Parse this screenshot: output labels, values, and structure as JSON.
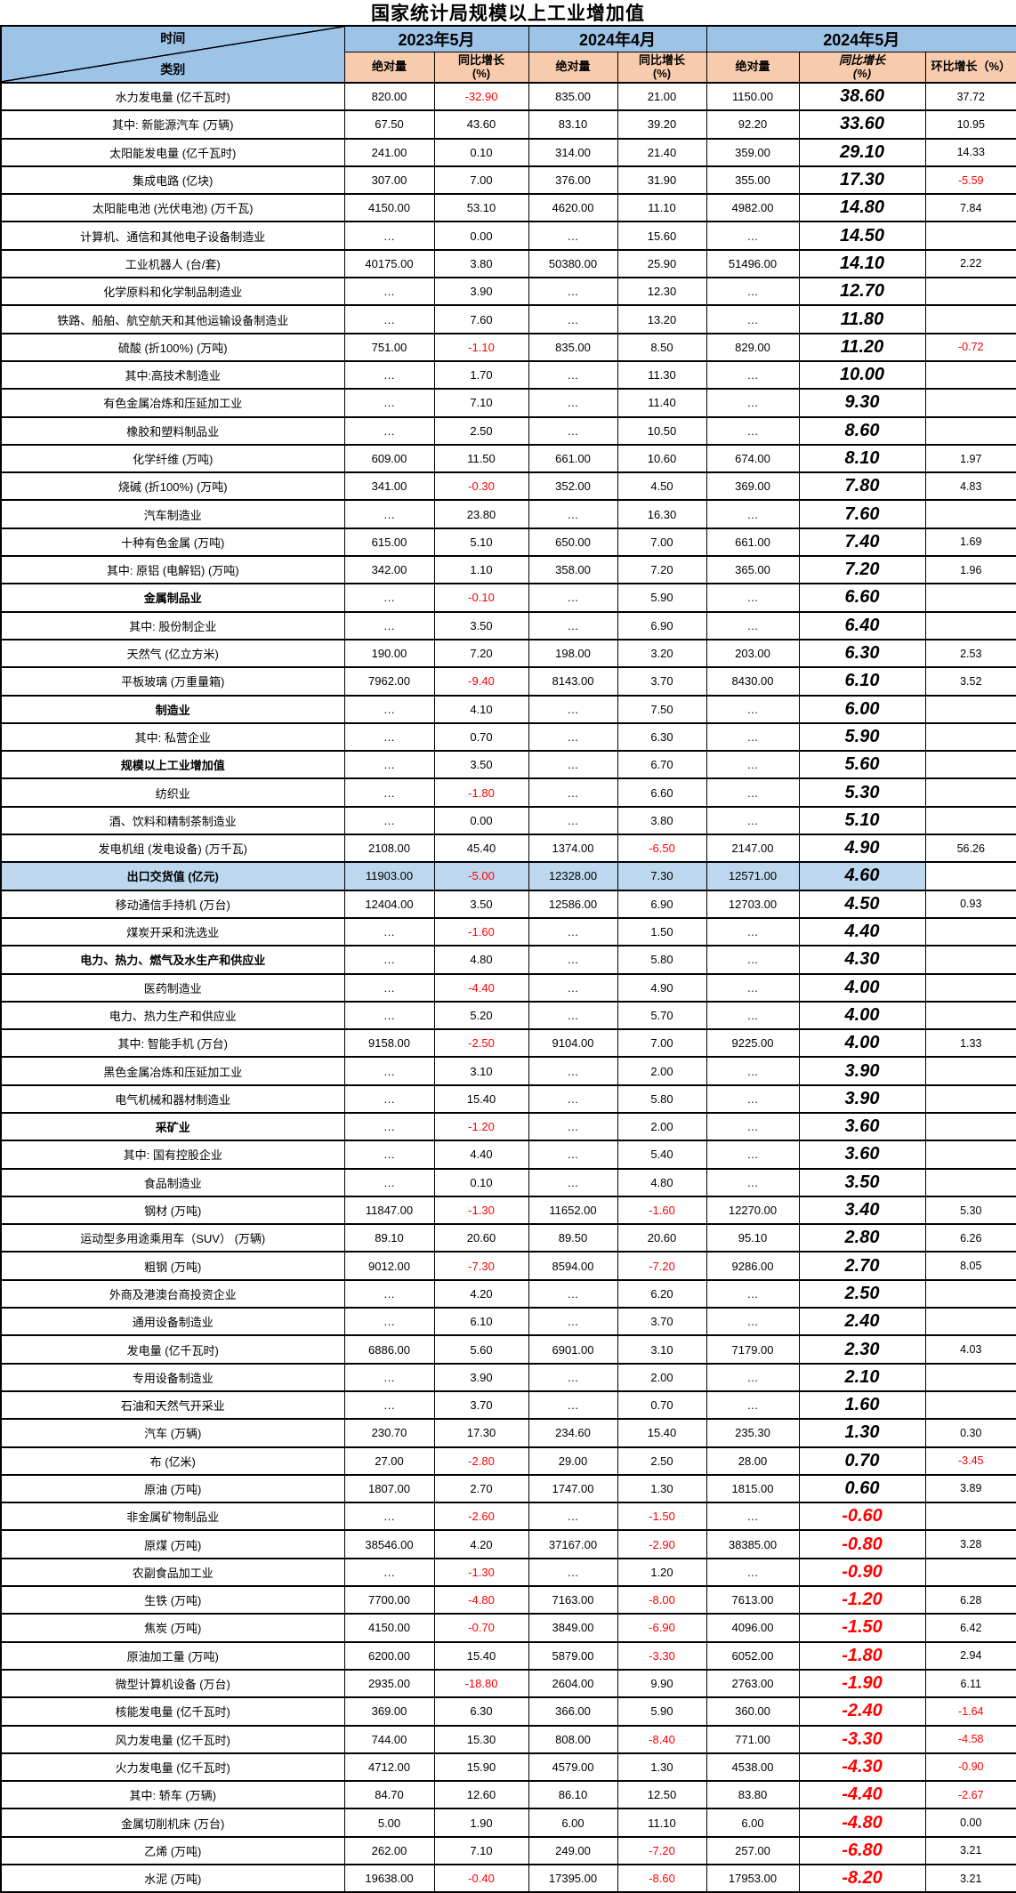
{
  "title": "国家统计局规模以上工业增加值",
  "corner": {
    "top": "时间",
    "bottom": "类别"
  },
  "col_groups": [
    "2023年5月",
    "2024年4月",
    "2024年5月"
  ],
  "subheaders": {
    "abs": "绝对量",
    "yoy_line1": "同比增长",
    "yoy_line2": "(%)",
    "mom": "环比增长（%）"
  },
  "colors": {
    "header_blue": "#9DC3E6",
    "subheader_peach": "#F8CBAD",
    "highlight_blue": "#BDD7EE",
    "negative_red": "#FF0000",
    "border_black": "#000000"
  },
  "rows": [
    {
      "label": "水力发电量 (亿千瓦时)",
      "bold": false,
      "highlight": false,
      "v": [
        "820.00",
        "-32.90",
        "835.00",
        "21.00",
        "1150.00",
        "38.60",
        "37.72"
      ]
    },
    {
      "label": "其中: 新能源汽车 (万辆)",
      "bold": false,
      "highlight": false,
      "v": [
        "67.50",
        "43.60",
        "83.10",
        "39.20",
        "92.20",
        "33.60",
        "10.95"
      ]
    },
    {
      "label": "太阳能发电量 (亿千瓦时)",
      "bold": false,
      "highlight": false,
      "v": [
        "241.00",
        "0.10",
        "314.00",
        "21.40",
        "359.00",
        "29.10",
        "14.33"
      ]
    },
    {
      "label": "集成电路 (亿块)",
      "bold": false,
      "highlight": false,
      "v": [
        "307.00",
        "7.00",
        "376.00",
        "31.90",
        "355.00",
        "17.30",
        "-5.59"
      ]
    },
    {
      "label": "太阳能电池 (光伏电池) (万千瓦)",
      "bold": false,
      "highlight": false,
      "v": [
        "4150.00",
        "53.10",
        "4620.00",
        "11.10",
        "4982.00",
        "14.80",
        "7.84"
      ]
    },
    {
      "label": "计算机、通信和其他电子设备制造业",
      "bold": false,
      "highlight": false,
      "v": [
        "…",
        "0.00",
        "…",
        "15.60",
        "…",
        "14.50",
        ""
      ]
    },
    {
      "label": "工业机器人 (台/套)",
      "bold": false,
      "highlight": false,
      "v": [
        "40175.00",
        "3.80",
        "50380.00",
        "25.90",
        "51496.00",
        "14.10",
        "2.22"
      ]
    },
    {
      "label": "化学原料和化学制品制造业",
      "bold": false,
      "highlight": false,
      "v": [
        "…",
        "3.90",
        "…",
        "12.30",
        "…",
        "12.70",
        ""
      ]
    },
    {
      "label": "铁路、船舶、航空航天和其他运输设备制造业",
      "bold": false,
      "highlight": false,
      "v": [
        "…",
        "7.60",
        "…",
        "13.20",
        "…",
        "11.80",
        ""
      ]
    },
    {
      "label": "硫酸 (折100%) (万吨)",
      "bold": false,
      "highlight": false,
      "v": [
        "751.00",
        "-1.10",
        "835.00",
        "8.50",
        "829.00",
        "11.20",
        "-0.72"
      ]
    },
    {
      "label": "其中:高技术制造业",
      "bold": false,
      "highlight": false,
      "v": [
        "…",
        "1.70",
        "…",
        "11.30",
        "…",
        "10.00",
        ""
      ]
    },
    {
      "label": "有色金属冶炼和压延加工业",
      "bold": false,
      "highlight": false,
      "v": [
        "…",
        "7.10",
        "…",
        "11.40",
        "…",
        "9.30",
        ""
      ]
    },
    {
      "label": "橡胶和塑料制品业",
      "bold": false,
      "highlight": false,
      "v": [
        "…",
        "2.50",
        "…",
        "10.50",
        "…",
        "8.60",
        ""
      ]
    },
    {
      "label": "化学纤维 (万吨)",
      "bold": false,
      "highlight": false,
      "v": [
        "609.00",
        "11.50",
        "661.00",
        "10.60",
        "674.00",
        "8.10",
        "1.97"
      ]
    },
    {
      "label": "烧碱 (折100%) (万吨)",
      "bold": false,
      "highlight": false,
      "v": [
        "341.00",
        "-0.30",
        "352.00",
        "4.50",
        "369.00",
        "7.80",
        "4.83"
      ]
    },
    {
      "label": "汽车制造业",
      "bold": false,
      "highlight": false,
      "v": [
        "…",
        "23.80",
        "…",
        "16.30",
        "…",
        "7.60",
        ""
      ]
    },
    {
      "label": "十种有色金属 (万吨)",
      "bold": false,
      "highlight": false,
      "v": [
        "615.00",
        "5.10",
        "650.00",
        "7.00",
        "661.00",
        "7.40",
        "1.69"
      ]
    },
    {
      "label": "其中: 原铝 (电解铝) (万吨)",
      "bold": false,
      "highlight": false,
      "v": [
        "342.00",
        "1.10",
        "358.00",
        "7.20",
        "365.00",
        "7.20",
        "1.96"
      ]
    },
    {
      "label": "金属制品业",
      "bold": true,
      "highlight": false,
      "v": [
        "…",
        "-0.10",
        "…",
        "5.90",
        "…",
        "6.60",
        ""
      ]
    },
    {
      "label": "其中: 股份制企业",
      "bold": false,
      "highlight": false,
      "v": [
        "…",
        "3.50",
        "…",
        "6.90",
        "…",
        "6.40",
        ""
      ]
    },
    {
      "label": "天然气 (亿立方米)",
      "bold": false,
      "highlight": false,
      "v": [
        "190.00",
        "7.20",
        "198.00",
        "3.20",
        "203.00",
        "6.30",
        "2.53"
      ]
    },
    {
      "label": "平板玻璃 (万重量箱)",
      "bold": false,
      "highlight": false,
      "v": [
        "7962.00",
        "-9.40",
        "8143.00",
        "3.70",
        "8430.00",
        "6.10",
        "3.52"
      ]
    },
    {
      "label": "制造业",
      "bold": true,
      "highlight": false,
      "v": [
        "…",
        "4.10",
        "…",
        "7.50",
        "…",
        "6.00",
        ""
      ]
    },
    {
      "label": "其中: 私营企业",
      "bold": false,
      "highlight": false,
      "v": [
        "…",
        "0.70",
        "…",
        "6.30",
        "…",
        "5.90",
        ""
      ]
    },
    {
      "label": "规模以上工业增加值",
      "bold": true,
      "highlight": false,
      "v": [
        "…",
        "3.50",
        "…",
        "6.70",
        "…",
        "5.60",
        ""
      ]
    },
    {
      "label": "纺织业",
      "bold": false,
      "highlight": false,
      "v": [
        "…",
        "-1.80",
        "…",
        "6.60",
        "…",
        "5.30",
        ""
      ]
    },
    {
      "label": "酒、饮料和精制茶制造业",
      "bold": false,
      "highlight": false,
      "v": [
        "…",
        "0.00",
        "…",
        "3.80",
        "…",
        "5.10",
        ""
      ]
    },
    {
      "label": "发电机组 (发电设备) (万千瓦)",
      "bold": false,
      "highlight": false,
      "v": [
        "2108.00",
        "45.40",
        "1374.00",
        "-6.50",
        "2147.00",
        "4.90",
        "56.26"
      ]
    },
    {
      "label": "出口交货值 (亿元)",
      "bold": true,
      "highlight": true,
      "v": [
        "11903.00",
        "-5.00",
        "12328.00",
        "7.30",
        "12571.00",
        "4.60",
        ""
      ]
    },
    {
      "label": "移动通信手持机 (万台)",
      "bold": false,
      "highlight": false,
      "v": [
        "12404.00",
        "3.50",
        "12586.00",
        "6.90",
        "12703.00",
        "4.50",
        "0.93"
      ]
    },
    {
      "label": "煤炭开采和洗选业",
      "bold": false,
      "highlight": false,
      "v": [
        "…",
        "-1.60",
        "…",
        "1.50",
        "…",
        "4.40",
        ""
      ]
    },
    {
      "label": "电力、热力、燃气及水生产和供应业",
      "bold": true,
      "highlight": false,
      "v": [
        "…",
        "4.80",
        "…",
        "5.80",
        "…",
        "4.30",
        ""
      ]
    },
    {
      "label": "医药制造业",
      "bold": false,
      "highlight": false,
      "v": [
        "…",
        "-4.40",
        "…",
        "4.90",
        "…",
        "4.00",
        ""
      ]
    },
    {
      "label": "电力、热力生产和供应业",
      "bold": false,
      "highlight": false,
      "v": [
        "…",
        "5.20",
        "…",
        "5.70",
        "…",
        "4.00",
        ""
      ]
    },
    {
      "label": "其中: 智能手机 (万台)",
      "bold": false,
      "highlight": false,
      "v": [
        "9158.00",
        "-2.50",
        "9104.00",
        "7.00",
        "9225.00",
        "4.00",
        "1.33"
      ]
    },
    {
      "label": "黑色金属冶炼和压延加工业",
      "bold": false,
      "highlight": false,
      "v": [
        "…",
        "3.10",
        "…",
        "2.00",
        "…",
        "3.90",
        ""
      ]
    },
    {
      "label": "电气机械和器材制造业",
      "bold": false,
      "highlight": false,
      "v": [
        "…",
        "15.40",
        "…",
        "5.80",
        "…",
        "3.90",
        ""
      ]
    },
    {
      "label": "采矿业",
      "bold": true,
      "highlight": false,
      "v": [
        "…",
        "-1.20",
        "…",
        "2.00",
        "…",
        "3.60",
        ""
      ]
    },
    {
      "label": "其中: 国有控股企业",
      "bold": false,
      "highlight": false,
      "v": [
        "…",
        "4.40",
        "…",
        "5.40",
        "…",
        "3.60",
        ""
      ]
    },
    {
      "label": "食品制造业",
      "bold": false,
      "highlight": false,
      "v": [
        "…",
        "0.10",
        "…",
        "4.80",
        "…",
        "3.50",
        ""
      ]
    },
    {
      "label": "钢材 (万吨)",
      "bold": false,
      "highlight": false,
      "v": [
        "11847.00",
        "-1.30",
        "11652.00",
        "-1.60",
        "12270.00",
        "3.40",
        "5.30"
      ]
    },
    {
      "label": "运动型多用途乘用车（SUV） (万辆)",
      "bold": false,
      "highlight": false,
      "v": [
        "89.10",
        "20.60",
        "89.50",
        "20.60",
        "95.10",
        "2.80",
        "6.26"
      ]
    },
    {
      "label": "粗钢 (万吨)",
      "bold": false,
      "highlight": false,
      "v": [
        "9012.00",
        "-7.30",
        "8594.00",
        "-7.20",
        "9286.00",
        "2.70",
        "8.05"
      ]
    },
    {
      "label": "外商及港澳台商投资企业",
      "bold": false,
      "highlight": false,
      "v": [
        "…",
        "4.20",
        "…",
        "6.20",
        "…",
        "2.50",
        ""
      ]
    },
    {
      "label": "通用设备制造业",
      "bold": false,
      "highlight": false,
      "v": [
        "…",
        "6.10",
        "…",
        "3.70",
        "…",
        "2.40",
        ""
      ]
    },
    {
      "label": "发电量 (亿千瓦时)",
      "bold": false,
      "highlight": false,
      "v": [
        "6886.00",
        "5.60",
        "6901.00",
        "3.10",
        "7179.00",
        "2.30",
        "4.03"
      ]
    },
    {
      "label": "专用设备制造业",
      "bold": false,
      "highlight": false,
      "v": [
        "…",
        "3.90",
        "…",
        "2.00",
        "…",
        "2.10",
        ""
      ]
    },
    {
      "label": "石油和天然气开采业",
      "bold": false,
      "highlight": false,
      "v": [
        "…",
        "3.70",
        "…",
        "0.70",
        "…",
        "1.60",
        ""
      ]
    },
    {
      "label": "汽车 (万辆)",
      "bold": false,
      "highlight": false,
      "v": [
        "230.70",
        "17.30",
        "234.60",
        "15.40",
        "235.30",
        "1.30",
        "0.30"
      ]
    },
    {
      "label": "布 (亿米)",
      "bold": false,
      "highlight": false,
      "v": [
        "27.00",
        "-2.80",
        "29.00",
        "2.50",
        "28.00",
        "0.70",
        "-3.45"
      ]
    },
    {
      "label": "原油 (万吨)",
      "bold": false,
      "highlight": false,
      "v": [
        "1807.00",
        "2.70",
        "1747.00",
        "1.30",
        "1815.00",
        "0.60",
        "3.89"
      ]
    },
    {
      "label": "非金属矿物制品业",
      "bold": false,
      "highlight": false,
      "v": [
        "…",
        "-2.60",
        "…",
        "-1.50",
        "…",
        "-0.60",
        ""
      ]
    },
    {
      "label": "原煤 (万吨)",
      "bold": false,
      "highlight": false,
      "v": [
        "38546.00",
        "4.20",
        "37167.00",
        "-2.90",
        "38385.00",
        "-0.80",
        "3.28"
      ]
    },
    {
      "label": "农副食品加工业",
      "bold": false,
      "highlight": false,
      "v": [
        "…",
        "-1.30",
        "…",
        "1.20",
        "…",
        "-0.90",
        ""
      ]
    },
    {
      "label": "生铁 (万吨)",
      "bold": false,
      "highlight": false,
      "v": [
        "7700.00",
        "-4.80",
        "7163.00",
        "-8.00",
        "7613.00",
        "-1.20",
        "6.28"
      ]
    },
    {
      "label": "焦炭 (万吨)",
      "bold": false,
      "highlight": false,
      "v": [
        "4150.00",
        "-0.70",
        "3849.00",
        "-6.90",
        "4096.00",
        "-1.50",
        "6.42"
      ]
    },
    {
      "label": "原油加工量 (万吨)",
      "bold": false,
      "highlight": false,
      "v": [
        "6200.00",
        "15.40",
        "5879.00",
        "-3.30",
        "6052.00",
        "-1.80",
        "2.94"
      ]
    },
    {
      "label": "微型计算机设备 (万台)",
      "bold": false,
      "highlight": false,
      "v": [
        "2935.00",
        "-18.80",
        "2604.00",
        "9.90",
        "2763.00",
        "-1.90",
        "6.11"
      ]
    },
    {
      "label": "核能发电量 (亿千瓦时)",
      "bold": false,
      "highlight": false,
      "v": [
        "369.00",
        "6.30",
        "366.00",
        "5.90",
        "360.00",
        "-2.40",
        "-1.64"
      ]
    },
    {
      "label": "风力发电量 (亿千瓦时)",
      "bold": false,
      "highlight": false,
      "v": [
        "744.00",
        "15.30",
        "808.00",
        "-8.40",
        "771.00",
        "-3.30",
        "-4.58"
      ]
    },
    {
      "label": "火力发电量 (亿千瓦时)",
      "bold": false,
      "highlight": false,
      "v": [
        "4712.00",
        "15.90",
        "4579.00",
        "1.30",
        "4538.00",
        "-4.30",
        "-0.90"
      ]
    },
    {
      "label": "其中: 轿车 (万辆)",
      "bold": false,
      "highlight": false,
      "v": [
        "84.70",
        "12.60",
        "86.10",
        "12.50",
        "83.80",
        "-4.40",
        "-2.67"
      ]
    },
    {
      "label": "金属切削机床 (万台)",
      "bold": false,
      "highlight": false,
      "v": [
        "5.00",
        "1.90",
        "6.00",
        "11.10",
        "6.00",
        "-4.80",
        "0.00"
      ]
    },
    {
      "label": "乙烯 (万吨)",
      "bold": false,
      "highlight": false,
      "v": [
        "262.00",
        "7.10",
        "249.00",
        "-7.20",
        "257.00",
        "-6.80",
        "3.21"
      ]
    },
    {
      "label": "水泥 (万吨)",
      "bold": false,
      "highlight": false,
      "v": [
        "19638.00",
        "-0.40",
        "17395.00",
        "-8.60",
        "17953.00",
        "-8.20",
        "3.21"
      ]
    }
  ]
}
